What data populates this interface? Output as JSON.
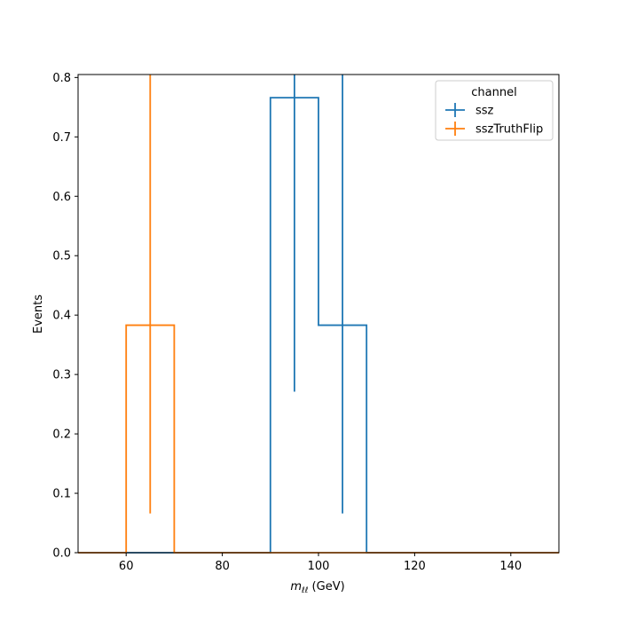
{
  "chart_data": {
    "type": "step-histogram",
    "xlabel_main": "m",
    "xlabel_sub": "ℓℓ",
    "xlabel_unit": " (GeV)",
    "ylabel": "Events",
    "xlim": [
      50,
      150
    ],
    "ylim": [
      0,
      0.805
    ],
    "xticks": [
      60,
      80,
      100,
      120,
      140
    ],
    "yticks": [
      0.0,
      0.1,
      0.2,
      0.3,
      0.4,
      0.5,
      0.6,
      0.7,
      0.8
    ],
    "bin_edges": [
      50,
      60,
      70,
      80,
      90,
      100,
      110,
      120,
      130,
      140,
      150
    ],
    "legend": {
      "title": "channel",
      "placement": "top-right"
    },
    "series": [
      {
        "name": "ssz",
        "color": "#1f77b4",
        "values": [
          0,
          0,
          0,
          0,
          0.766,
          0.383,
          0,
          0,
          0,
          0
        ],
        "errors": [
          {
            "x": 95,
            "low": 0.271,
            "high": 0.805
          },
          {
            "x": 105,
            "low": 0.066,
            "high": 0.805
          }
        ]
      },
      {
        "name": "sszTruthFlip",
        "color": "#ff7f0e",
        "values": [
          0,
          0.383,
          0,
          0,
          0,
          0,
          0,
          0,
          0,
          0
        ],
        "errors": [
          {
            "x": 65,
            "low": 0.066,
            "high": 0.805
          }
        ]
      }
    ]
  }
}
